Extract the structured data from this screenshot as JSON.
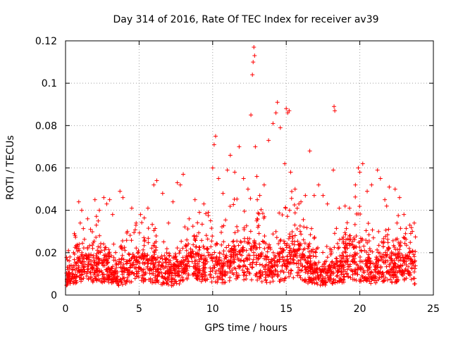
{
  "chart_data": {
    "type": "scatter",
    "title": "Day 314 of 2016, Rate Of TEC Index for receiver av39",
    "xlabel": "GPS time / hours",
    "ylabel": "ROTI / TECUs",
    "xlim": [
      0,
      25
    ],
    "ylim": [
      0,
      0.12
    ],
    "xticks": [
      0,
      5,
      10,
      15,
      20,
      25
    ],
    "yticks": [
      0,
      0.02,
      0.04,
      0.06,
      0.08,
      0.1,
      0.12
    ],
    "xtick_labels": [
      "0",
      "5",
      "10",
      "15",
      "20",
      "25"
    ],
    "ytick_labels": [
      "0",
      "0.02",
      "0.04",
      "0.06",
      "0.08",
      "0.1",
      "0.12"
    ],
    "grid": true,
    "marker": "+",
    "color": "#ff0000",
    "series": [
      {
        "name": "ROTI",
        "points": [
          [
            0.2,
            0.021
          ],
          [
            0.3,
            0.018
          ],
          [
            0.6,
            0.029
          ],
          [
            0.9,
            0.044
          ],
          [
            1.0,
            0.034
          ],
          [
            1.1,
            0.04
          ],
          [
            1.5,
            0.036
          ],
          [
            1.7,
            0.031
          ],
          [
            2.0,
            0.045
          ],
          [
            2.3,
            0.04
          ],
          [
            2.6,
            0.046
          ],
          [
            2.8,
            0.043
          ],
          [
            3.0,
            0.045
          ],
          [
            3.2,
            0.038
          ],
          [
            3.7,
            0.049
          ],
          [
            3.9,
            0.046
          ],
          [
            4.2,
            0.03
          ],
          [
            4.5,
            0.041
          ],
          [
            4.8,
            0.034
          ],
          [
            5.1,
            0.038
          ],
          [
            5.6,
            0.041
          ],
          [
            6.0,
            0.052
          ],
          [
            6.2,
            0.054
          ],
          [
            6.6,
            0.048
          ],
          [
            7.0,
            0.034
          ],
          [
            7.3,
            0.044
          ],
          [
            7.6,
            0.053
          ],
          [
            7.8,
            0.052
          ],
          [
            8.0,
            0.057
          ],
          [
            8.4,
            0.036
          ],
          [
            8.8,
            0.045
          ],
          [
            9.1,
            0.039
          ],
          [
            9.4,
            0.043
          ],
          [
            9.7,
            0.039
          ],
          [
            10.0,
            0.06
          ],
          [
            10.1,
            0.071
          ],
          [
            10.2,
            0.075
          ],
          [
            10.4,
            0.055
          ],
          [
            10.7,
            0.048
          ],
          [
            11.0,
            0.059
          ],
          [
            11.2,
            0.066
          ],
          [
            11.5,
            0.058
          ],
          [
            11.8,
            0.07
          ],
          [
            12.1,
            0.055
          ],
          [
            12.4,
            0.05
          ],
          [
            12.6,
            0.085
          ],
          [
            12.7,
            0.104
          ],
          [
            12.75,
            0.11
          ],
          [
            12.8,
            0.117
          ],
          [
            12.85,
            0.113
          ],
          [
            12.9,
            0.07
          ],
          [
            13.0,
            0.056
          ],
          [
            13.2,
            0.047
          ],
          [
            13.5,
            0.052
          ],
          [
            13.8,
            0.073
          ],
          [
            14.1,
            0.081
          ],
          [
            14.3,
            0.086
          ],
          [
            14.4,
            0.091
          ],
          [
            14.6,
            0.079
          ],
          [
            14.9,
            0.062
          ],
          [
            15.0,
            0.088
          ],
          [
            15.1,
            0.086
          ],
          [
            15.2,
            0.087
          ],
          [
            15.3,
            0.058
          ],
          [
            15.6,
            0.05
          ],
          [
            16.0,
            0.044
          ],
          [
            16.3,
            0.047
          ],
          [
            16.6,
            0.068
          ],
          [
            16.9,
            0.047
          ],
          [
            17.2,
            0.052
          ],
          [
            17.5,
            0.047
          ],
          [
            17.8,
            0.043
          ],
          [
            18.2,
            0.059
          ],
          [
            18.25,
            0.089
          ],
          [
            18.3,
            0.087
          ],
          [
            18.6,
            0.041
          ],
          [
            19.0,
            0.042
          ],
          [
            19.3,
            0.041
          ],
          [
            19.7,
            0.052
          ],
          [
            19.9,
            0.06
          ],
          [
            20.0,
            0.058
          ],
          [
            20.2,
            0.062
          ],
          [
            20.5,
            0.049
          ],
          [
            20.8,
            0.052
          ],
          [
            21.2,
            0.059
          ],
          [
            21.4,
            0.055
          ],
          [
            21.7,
            0.045
          ],
          [
            22.0,
            0.051
          ],
          [
            22.4,
            0.05
          ],
          [
            22.7,
            0.046
          ],
          [
            23.0,
            0.038
          ],
          [
            23.4,
            0.033
          ],
          [
            23.7,
            0.034
          ]
        ]
      }
    ]
  }
}
